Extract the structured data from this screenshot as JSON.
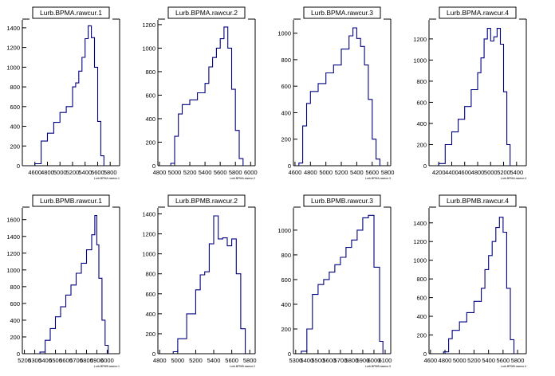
{
  "chart_data": [
    {
      "type": "histogram",
      "title": "Lurb.BPMA.rawcur.1",
      "xlabel": "Lurb.BPMA.rawcur.1",
      "xlim": [
        4400,
        5950
      ],
      "ylim": [
        0,
        1480
      ],
      "xticks": [
        4600,
        4800,
        5000,
        5200,
        5400,
        5600,
        5800
      ],
      "yticks": [
        0,
        200,
        400,
        600,
        800,
        1000,
        1200,
        1400
      ],
      "x": [
        4600,
        4700,
        4800,
        4900,
        5000,
        5100,
        5200,
        5250,
        5300,
        5350,
        5400,
        5450,
        5500,
        5550,
        5600,
        5650,
        5700
      ],
      "y": [
        20,
        250,
        330,
        440,
        540,
        600,
        800,
        840,
        960,
        1100,
        1290,
        1420,
        1300,
        1000,
        450,
        100,
        0
      ]
    },
    {
      "type": "histogram",
      "title": "Lurb.BPMA.rawcur.2",
      "xlabel": "Lurb.BPMA.rawcur.2",
      "xlim": [
        4780,
        6060
      ],
      "ylim": [
        0,
        1240
      ],
      "xticks": [
        4800,
        5000,
        5200,
        5400,
        5600,
        5800,
        6000
      ],
      "yticks": [
        0,
        200,
        400,
        600,
        800,
        1000,
        1200
      ],
      "x": [
        4950,
        5000,
        5050,
        5100,
        5200,
        5300,
        5400,
        5450,
        5500,
        5550,
        5600,
        5650,
        5700,
        5750,
        5800,
        5850,
        5900
      ],
      "y": [
        20,
        250,
        440,
        520,
        560,
        620,
        700,
        840,
        920,
        1000,
        1080,
        1180,
        1000,
        650,
        300,
        60,
        0
      ]
    },
    {
      "type": "histogram",
      "title": "Lurb.BPMA.rawcur.3",
      "xlabel": "Lurb.BPMA.rawcur.3",
      "xlim": [
        4580,
        5840
      ],
      "ylim": [
        0,
        1100
      ],
      "xticks": [
        4600,
        4800,
        5000,
        5200,
        5400,
        5600,
        5800
      ],
      "yticks": [
        0,
        200,
        400,
        600,
        800,
        1000
      ],
      "x": [
        4650,
        4700,
        4750,
        4800,
        4900,
        5000,
        5100,
        5200,
        5300,
        5350,
        5400,
        5450,
        5500,
        5550,
        5600,
        5650,
        5700
      ],
      "y": [
        20,
        300,
        470,
        560,
        620,
        700,
        760,
        880,
        980,
        1040,
        960,
        900,
        760,
        500,
        200,
        50,
        0
      ]
    },
    {
      "type": "histogram",
      "title": "Lurb.BPMA.rawcur.4",
      "xlabel": "Lurb.BPMA.rawcur.4",
      "xlim": [
        4050,
        5550
      ],
      "ylim": [
        0,
        1380
      ],
      "xticks": [
        4200,
        4400,
        4600,
        4800,
        5000,
        5200,
        5400
      ],
      "yticks": [
        0,
        200,
        400,
        600,
        800,
        1000,
        1200
      ],
      "x": [
        4200,
        4300,
        4400,
        4500,
        4600,
        4700,
        4800,
        4850,
        4900,
        4950,
        5000,
        5050,
        5100,
        5150,
        5200,
        5250,
        5300
      ],
      "y": [
        20,
        200,
        320,
        440,
        560,
        720,
        880,
        1020,
        1200,
        1300,
        1180,
        1220,
        1300,
        1150,
        700,
        200,
        0
      ]
    },
    {
      "type": "histogram",
      "title": "Lurb.BPMB.rawcur.1",
      "xlabel": "Lurb.BPMB.rawcur.1",
      "xlim": [
        5180,
        6120
      ],
      "ylim": [
        0,
        1740
      ],
      "xticks": [
        5200,
        5300,
        5400,
        5500,
        5600,
        5700,
        5800,
        5900,
        6000
      ],
      "yticks": [
        0,
        200,
        400,
        600,
        800,
        1000,
        1200,
        1400,
        1600
      ],
      "x": [
        5350,
        5400,
        5450,
        5500,
        5550,
        5600,
        5650,
        5700,
        5750,
        5800,
        5850,
        5880,
        5900,
        5920,
        5950,
        5980,
        6010
      ],
      "y": [
        20,
        160,
        300,
        440,
        560,
        700,
        820,
        960,
        1080,
        1240,
        1420,
        1650,
        1300,
        900,
        400,
        100,
        0
      ]
    },
    {
      "type": "histogram",
      "title": "Lurb.BPMB.rawcur.2",
      "xlabel": "Lurb.BPMB.rawcur.2",
      "xlim": [
        4780,
        5860
      ],
      "ylim": [
        0,
        1460
      ],
      "xticks": [
        4800,
        5000,
        5200,
        5400,
        5600,
        5800
      ],
      "yticks": [
        0,
        200,
        400,
        600,
        800,
        1000,
        1200,
        1400
      ],
      "x": [
        4950,
        5000,
        5100,
        5200,
        5250,
        5300,
        5350,
        5400,
        5450,
        5500,
        5550,
        5600,
        5650,
        5700,
        5750
      ],
      "y": [
        20,
        150,
        400,
        640,
        790,
        820,
        1100,
        1380,
        1150,
        1160,
        1080,
        1150,
        800,
        250,
        0
      ]
    },
    {
      "type": "histogram",
      "title": "Lurb.BPMB.rawcur.3",
      "xlabel": "Lurb.BPMB.rawcur.3",
      "xlim": [
        5280,
        6150
      ],
      "ylim": [
        0,
        1180
      ],
      "xticks": [
        5300,
        5400,
        5500,
        5600,
        5700,
        5800,
        5900,
        6000,
        6100
      ],
      "yticks": [
        0,
        200,
        400,
        600,
        800,
        1000
      ],
      "x": [
        5350,
        5400,
        5450,
        5500,
        5550,
        5600,
        5650,
        5700,
        5750,
        5800,
        5850,
        5900,
        5950,
        6000,
        6050,
        6080
      ],
      "y": [
        20,
        200,
        480,
        560,
        600,
        660,
        720,
        780,
        860,
        920,
        1000,
        1100,
        1120,
        700,
        100,
        0
      ]
    },
    {
      "type": "histogram",
      "title": "Lurb.BPMB.rawcur.4",
      "xlabel": "Lurb.BPMB.rawcur.4",
      "xlim": [
        4580,
        5920
      ],
      "ylim": [
        0,
        1560
      ],
      "xticks": [
        4600,
        4800,
        5000,
        5200,
        5400,
        5600,
        5800
      ],
      "yticks": [
        0,
        200,
        400,
        600,
        800,
        1000,
        1200,
        1400
      ],
      "x": [
        4780,
        4850,
        4900,
        5000,
        5100,
        5200,
        5300,
        5350,
        5400,
        5450,
        5500,
        5550,
        5600,
        5650,
        5700,
        5750
      ],
      "y": [
        20,
        160,
        250,
        340,
        440,
        560,
        700,
        900,
        1050,
        1200,
        1350,
        1460,
        1300,
        700,
        150,
        0
      ]
    }
  ]
}
